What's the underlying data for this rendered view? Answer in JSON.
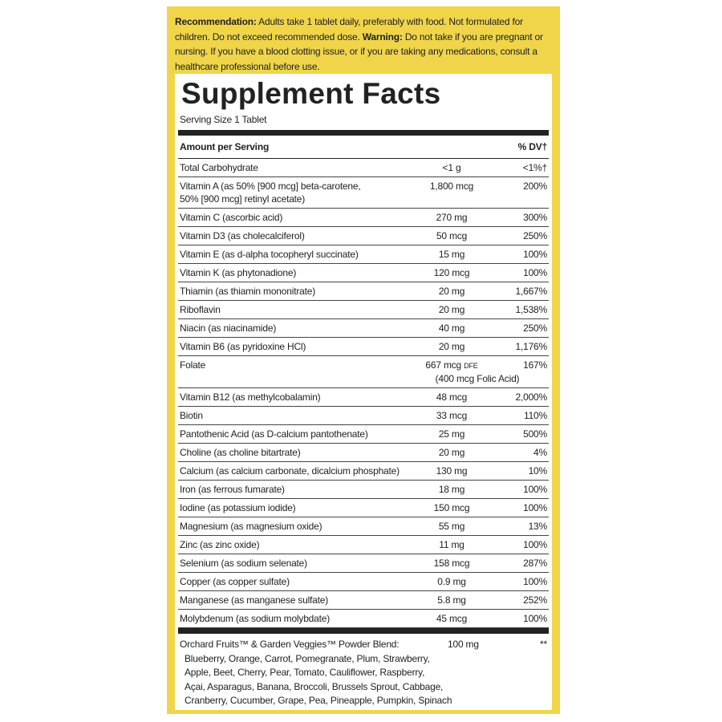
{
  "notice": {
    "recommendation_label": "Recommendation:",
    "recommendation_text": "Adults take 1 tablet daily, preferably with food. Not formulated for children. Do not exceed recommended dose.",
    "warning_label": "Warning:",
    "warning_text": "Do not take if you are pregnant or nursing. If you have a blood clotting issue, or if you are taking any medications, consult a healthcare professional before use."
  },
  "facts": {
    "title": "Supplement Facts",
    "serving_size": "Serving Size 1 Tablet",
    "header_amount": "Amount per Serving",
    "header_dv": "% DV†",
    "rows": [
      {
        "name": "Total Carbohydrate",
        "amount": "<1 g",
        "dv": "<1%†"
      },
      {
        "name": [
          "Vitamin A (as 50% [900 mcg] beta-carotene,",
          "50% [900 mcg] retinyl acetate)"
        ],
        "amount": "1,800 mcg",
        "dv": "200%"
      },
      {
        "name": "Vitamin C (ascorbic acid)",
        "amount": "270 mg",
        "dv": "300%"
      },
      {
        "name": "Vitamin D3 (as cholecalciferol)",
        "amount": "50 mcg",
        "dv": "250%"
      },
      {
        "name": "Vitamin E (as d-alpha tocopheryl succinate)",
        "amount": "15 mg",
        "dv": "100%"
      },
      {
        "name": "Vitamin K (as phytonadione)",
        "amount": "120 mcg",
        "dv": "100%"
      },
      {
        "name": "Thiamin (as thiamin mononitrate)",
        "amount": "20 mg",
        "dv": "1,667%"
      },
      {
        "name": "Riboflavin",
        "amount": "20 mg",
        "dv": "1,538%"
      },
      {
        "name": "Niacin (as niacinamide)",
        "amount": "40 mg",
        "dv": "250%"
      },
      {
        "name": "Vitamin B6 (as pyridoxine HCl)",
        "amount": "20 mg",
        "dv": "1,176%"
      },
      {
        "name": "Folate",
        "amount": "667 mcg",
        "amount_unit": "DFE",
        "amount_note": "(400 mcg Folic Acid)",
        "dv": "167%"
      },
      {
        "name": "Vitamin B12 (as methylcobalamin)",
        "amount": "48 mcg",
        "dv": "2,000%"
      },
      {
        "name": "Biotin",
        "amount": "33 mcg",
        "dv": "110%"
      },
      {
        "name": "Pantothenic Acid (as D-calcium pantothenate)",
        "amount": "25 mg",
        "dv": "500%"
      },
      {
        "name": "Choline (as choline bitartrate)",
        "amount": "20 mg",
        "dv": "4%"
      },
      {
        "name": "Calcium (as calcium carbonate, dicalcium phosphate)",
        "amount": "130 mg",
        "dv": "10%"
      },
      {
        "name": "Iron (as ferrous fumarate)",
        "amount": "18 mg",
        "dv": "100%"
      },
      {
        "name": "Iodine (as potassium iodide)",
        "amount": "150 mcg",
        "dv": "100%"
      },
      {
        "name": "Magnesium (as magnesium oxide)",
        "amount": "55 mg",
        "dv": "13%"
      },
      {
        "name": "Zinc (as zinc oxide)",
        "amount": "11 mg",
        "dv": "100%"
      },
      {
        "name": "Selenium (as sodium selenate)",
        "amount": "158 mcg",
        "dv": "287%"
      },
      {
        "name": "Copper (as copper sulfate)",
        "amount": "0.9 mg",
        "dv": "100%"
      },
      {
        "name": "Manganese (as manganese sulfate)",
        "amount": "5.8 mg",
        "dv": "252%"
      },
      {
        "name": "Molybdenum (as sodium molybdate)",
        "amount": "45 mcg",
        "dv": "100%"
      }
    ],
    "blend": {
      "name": "Orchard Fruits™ & Garden Veggies™ Powder Blend:",
      "amount": "100 mg",
      "dv": "**",
      "ingredients": [
        "Blueberry, Orange, Carrot, Pomegranate, Plum, Strawberry,",
        "Apple, Beet, Cherry, Pear, Tomato, Cauliflower, Raspberry,",
        "Açai, Asparagus, Banana, Broccoli, Brussels Sprout, Cabbage,",
        "Cranberry, Cucumber, Grape, Pea, Pineapple, Pumpkin, Spinach"
      ]
    }
  }
}
